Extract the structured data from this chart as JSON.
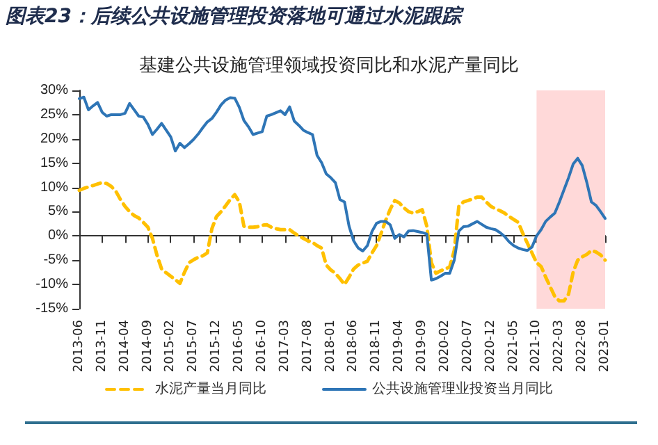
{
  "chart_data": {
    "type": "line",
    "title": "图表23：后续公共设施管理投资落地可通过水泥跟踪",
    "subtitle": "基建公共设施管理领域投资同比和水泥产量同比",
    "categories": [
      "2013-06",
      null,
      null,
      null,
      null,
      "2013-11",
      null,
      null,
      null,
      null,
      "2014-04",
      null,
      null,
      null,
      null,
      "2014-09",
      null,
      null,
      null,
      null,
      "2015-02",
      null,
      null,
      null,
      null,
      "2015-07",
      null,
      null,
      null,
      null,
      "2015-12",
      null,
      null,
      null,
      null,
      "2016-05",
      null,
      null,
      null,
      null,
      "2016-10",
      null,
      null,
      null,
      null,
      "2017-03",
      null,
      null,
      null,
      null,
      "2017-08",
      null,
      null,
      null,
      null,
      "2018-01",
      null,
      null,
      null,
      null,
      "2018-06",
      null,
      null,
      null,
      null,
      "2018-11",
      null,
      null,
      null,
      null,
      "2019-04",
      null,
      null,
      null,
      null,
      "2019-09",
      null,
      null,
      null,
      null,
      "2020-02",
      null,
      null,
      null,
      null,
      "2020-07",
      null,
      null,
      null,
      null,
      "2020-12",
      null,
      null,
      null,
      null,
      "2021-05",
      null,
      null,
      null,
      null,
      "2021-10",
      null,
      null,
      null,
      null,
      "2022-03",
      null,
      null,
      null,
      null,
      "2022-08",
      null,
      null,
      null,
      null,
      "2023-01"
    ],
    "series": [
      {
        "name": "水泥产量当月同比",
        "color": "#ffc000",
        "line_style": "dashed",
        "values": [
          9.4,
          9.8,
          10.1,
          10.4,
          10.7,
          11,
          10.8,
          10.2,
          9.2,
          7.5,
          6.1,
          5,
          4.2,
          3.7,
          2.8,
          1.8,
          -0.5,
          -4,
          -6.8,
          -7.6,
          -8.3,
          -9,
          -9.8,
          -7.5,
          -5.5,
          -4.9,
          -4.4,
          -4.1,
          -3.5,
          1.5,
          4,
          5,
          6.2,
          7.5,
          8.5,
          7,
          2,
          1.8,
          1.8,
          1.9,
          2.2,
          2.3,
          1.8,
          1.5,
          1.3,
          1.3,
          1.3,
          0.6,
          0,
          -0.5,
          -1,
          -1.3,
          -2,
          -2.5,
          -6,
          -7,
          -7.7,
          -8.8,
          -10,
          -8.5,
          -6.8,
          -6,
          -5.6,
          -5.2,
          -3.5,
          -2,
          0.5,
          3.2,
          5.5,
          7.3,
          6.8,
          5.8,
          5,
          4.7,
          5,
          5.4,
          2,
          -5.5,
          -7.7,
          -7.2,
          -6.8,
          -6.4,
          -3,
          6.1,
          7,
          7.3,
          7.6,
          8,
          8,
          7,
          6.1,
          5.6,
          5.2,
          4.7,
          4,
          3.4,
          2.8,
          0.5,
          -1.5,
          -3.5,
          -5.5,
          -6.3,
          -8.5,
          -10.5,
          -12.5,
          -13.4,
          -13.4,
          -12,
          -7.5,
          -5,
          -4.3,
          -3.8,
          -3,
          -3.3,
          -3.9,
          -5
        ]
      },
      {
        "name": "公共设施管理业投资当月同比",
        "color": "#2e75b6",
        "line_style": "solid",
        "values": [
          28.3,
          28.6,
          26,
          26.8,
          27.5,
          25.5,
          24.7,
          25,
          25,
          25,
          25.3,
          27.3,
          26,
          24.7,
          24.5,
          23,
          20.9,
          22,
          23.2,
          21.8,
          20.4,
          17.5,
          19.1,
          18.2,
          19,
          19.9,
          21,
          22.3,
          23.5,
          24.2,
          25.5,
          27,
          28,
          28.5,
          28.4,
          26.5,
          23.8,
          22.5,
          20.9,
          21.2,
          21.5,
          24.7,
          25,
          25.4,
          25.8,
          25,
          26.6,
          23.7,
          22.8,
          21.8,
          21.3,
          20.9,
          16.6,
          15.1,
          12.8,
          12,
          11,
          7.5,
          7,
          2,
          -1,
          -2.5,
          -3.1,
          -2,
          0.9,
          2.6,
          3,
          3,
          2.3,
          -0.5,
          0.3,
          -0.2,
          1,
          1.1,
          0.9,
          0.7,
          0.4,
          -9.1,
          -8.8,
          -8.3,
          -7.7,
          -7.7,
          -5,
          1,
          1.9,
          2,
          2.5,
          3,
          2.4,
          1.8,
          1.5,
          1.3,
          0.7,
          -0.1,
          -1.2,
          -2,
          -2.5,
          -2.8,
          -3,
          -2.3,
          0,
          1.3,
          3,
          3.9,
          4.7,
          7,
          9.5,
          12,
          14.8,
          16,
          14.5,
          11,
          7,
          6.3,
          5,
          3.6
        ]
      }
    ],
    "ylim": [
      -15,
      30
    ],
    "yticks": [
      {
        "value": -15,
        "label": "-15%"
      },
      {
        "value": -10,
        "label": "-10%"
      },
      {
        "value": -5,
        "label": "-5%"
      },
      {
        "value": 0,
        "label": "0%"
      },
      {
        "value": 5,
        "label": "5%"
      },
      {
        "value": 10,
        "label": "10%"
      },
      {
        "value": 15,
        "label": "15%"
      },
      {
        "value": 20,
        "label": "20%"
      },
      {
        "value": 25,
        "label": "25%"
      },
      {
        "value": 30,
        "label": "30%"
      }
    ],
    "bands": [
      {
        "axis": "x",
        "from": "2021-10",
        "to": "2023-01",
        "color": "#ffd9d9"
      }
    ],
    "legend": "bottom",
    "marker": "none"
  }
}
